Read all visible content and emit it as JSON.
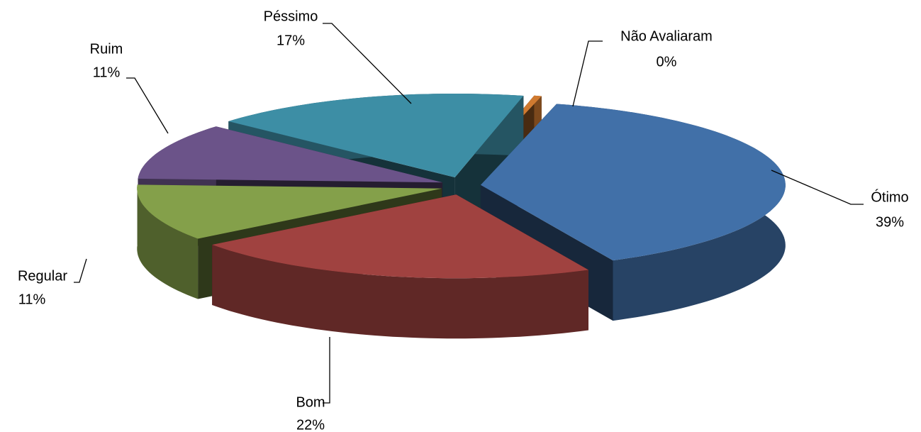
{
  "chart_data": {
    "type": "pie",
    "title": null,
    "categories": [
      "Não Avaliaram",
      "Ótimo",
      "Bom",
      "Regular",
      "Ruim",
      "Péssimo"
    ],
    "values": [
      0.4,
      39,
      22,
      11,
      11,
      17
    ],
    "value_labels": [
      "0%",
      "39%",
      "22%",
      "11%",
      "11%",
      "17%"
    ],
    "colors": [
      "#d07a30",
      "#4170a8",
      "#a04240",
      "#84a04a",
      "#6b5389",
      "#3d8ea5"
    ]
  }
}
